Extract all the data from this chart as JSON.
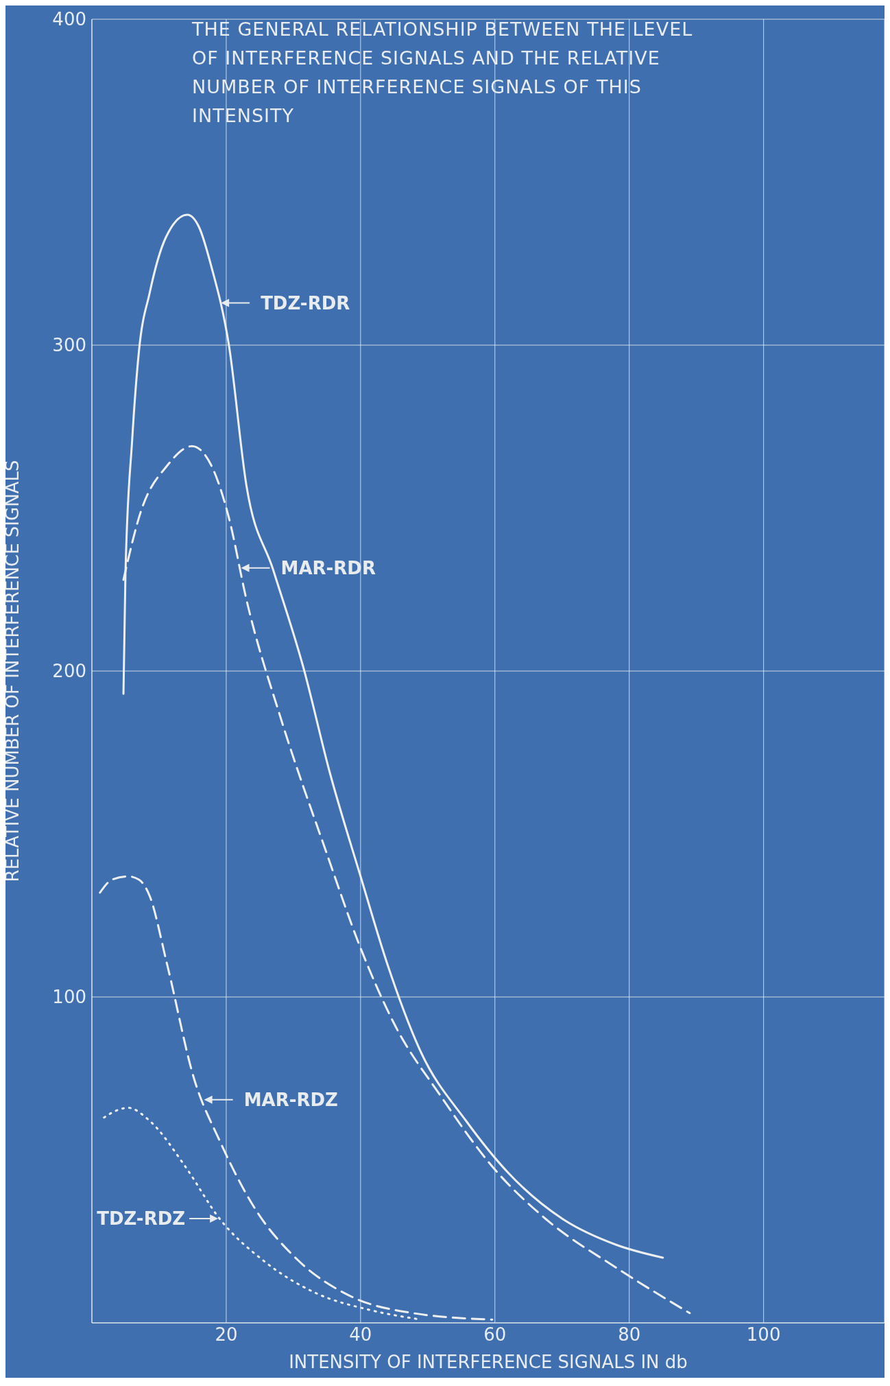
{
  "chart_data": {
    "type": "line",
    "title": "THE GENERAL RELATIONSHIP BETWEEN THE LEVEL OF INTERFERENCE SIGNALS AND THE RELATIVE NUMBER OF INTERFERENCE SIGNALS OF THIS INTENSITY",
    "xlabel": "INTENSITY OF INTERFERENCE SIGNALS IN db",
    "ylabel": "RELATIVE NUMBER OF INTERFERENCE SIGNALS",
    "xlim": [
      0,
      118
    ],
    "xticks": [
      20,
      40,
      60,
      80,
      100
    ],
    "ylim": [
      0,
      400
    ],
    "yticks": [
      100,
      200,
      300,
      400
    ],
    "grid": true,
    "legend": "left",
    "marker": "none",
    "series": [
      {
        "name": "TDZ-RDR",
        "color": "#eef0f0",
        "line_style": "solid",
        "x": [
          4.7,
          5,
          6,
          7,
          8.6,
          11,
          14.2,
          16,
          17.8,
          20.4,
          23,
          27,
          31.5,
          35.4,
          40,
          44,
          49,
          55.7,
          62,
          70,
          78,
          85
        ],
        "values": [
          193,
          230,
          271,
          298,
          316,
          333,
          340,
          336,
          324,
          300,
          257,
          231,
          201,
          169,
          137,
          110,
          83,
          62,
          46,
          32,
          24,
          20
        ]
      },
      {
        "name": "MAR-RDR",
        "color": "#eef0f0",
        "line_style": "dashed",
        "x": [
          4.7,
          7.3,
          11.2,
          14.9,
          17.8,
          20.4,
          23,
          28.2,
          34.8,
          40,
          45.2,
          51.8,
          59.6,
          67.5,
          78,
          89
        ],
        "values": [
          228,
          249,
          263,
          269,
          263,
          247,
          222,
          185,
          145,
          115,
          91,
          70,
          48,
          32,
          17,
          3
        ]
      },
      {
        "name": "MAR-RDZ",
        "color": "#eef0f0",
        "line_style": "dashed",
        "x": [
          1.2,
          3,
          5.4,
          7,
          8.6,
          11.2,
          15.2,
          19,
          24.3,
          30.8,
          38.7,
          47.8,
          59.6
        ],
        "values": [
          132,
          136,
          137,
          136,
          131,
          110,
          75,
          56,
          35,
          19,
          8,
          3,
          1
        ]
      },
      {
        "name": "TDZ-RDZ",
        "color": "#eef0f0",
        "line_style": "dotted",
        "x": [
          1.8,
          3.5,
          5.4,
          8.6,
          13.9,
          19,
          25.6,
          33.5,
          41.3,
          49
        ],
        "values": [
          63,
          65,
          66,
          62,
          48,
          32,
          19,
          9,
          4,
          1
        ]
      }
    ]
  }
}
